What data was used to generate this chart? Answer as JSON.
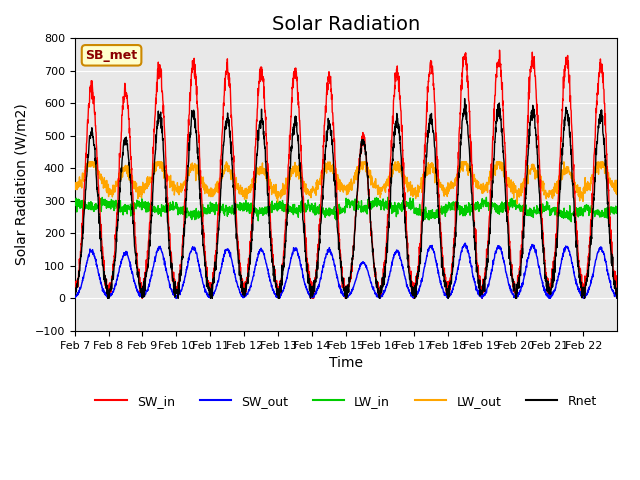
{
  "title": "Solar Radiation",
  "ylabel": "Solar Radiation (W/m2)",
  "xlabel": "Time",
  "ylim": [
    -100,
    800
  ],
  "yticks": [
    -100,
    0,
    100,
    200,
    300,
    400,
    500,
    600,
    700,
    800
  ],
  "date_labels": [
    "Feb 7",
    "Feb 8",
    "Feb 9",
    "Feb 10",
    "Feb 11",
    "Feb 12",
    "Feb 13",
    "Feb 14",
    "Feb 15",
    "Feb 16",
    "Feb 17",
    "Feb 18",
    "Feb 19",
    "Feb 20",
    "Feb 21",
    "Feb 22"
  ],
  "colors": {
    "SW_in": "#ff0000",
    "SW_out": "#0000ff",
    "LW_in": "#00cc00",
    "LW_out": "#ffa500",
    "Rnet": "#000000"
  },
  "SW_in_peaks": [
    650,
    640,
    710,
    720,
    710,
    700,
    700,
    680,
    490,
    690,
    720,
    750,
    740,
    740,
    735,
    720
  ],
  "SW_out_peaks": [
    145,
    140,
    155,
    155,
    150,
    150,
    152,
    148,
    110,
    145,
    160,
    165,
    160,
    162,
    158,
    155
  ],
  "LW_in_base": 280,
  "LW_out_base": 325,
  "Rnet_peaks": [
    510,
    490,
    560,
    565,
    555,
    550,
    545,
    535,
    490,
    545,
    555,
    585,
    580,
    575,
    575,
    560
  ],
  "annotation_text": "SB_met",
  "annotation_color": "#cc8800",
  "background_color": "#e8e8e8",
  "title_fontsize": 14,
  "label_fontsize": 10,
  "tick_fontsize": 8,
  "legend_fontsize": 9,
  "n_days": 16,
  "points_per_day": 144
}
